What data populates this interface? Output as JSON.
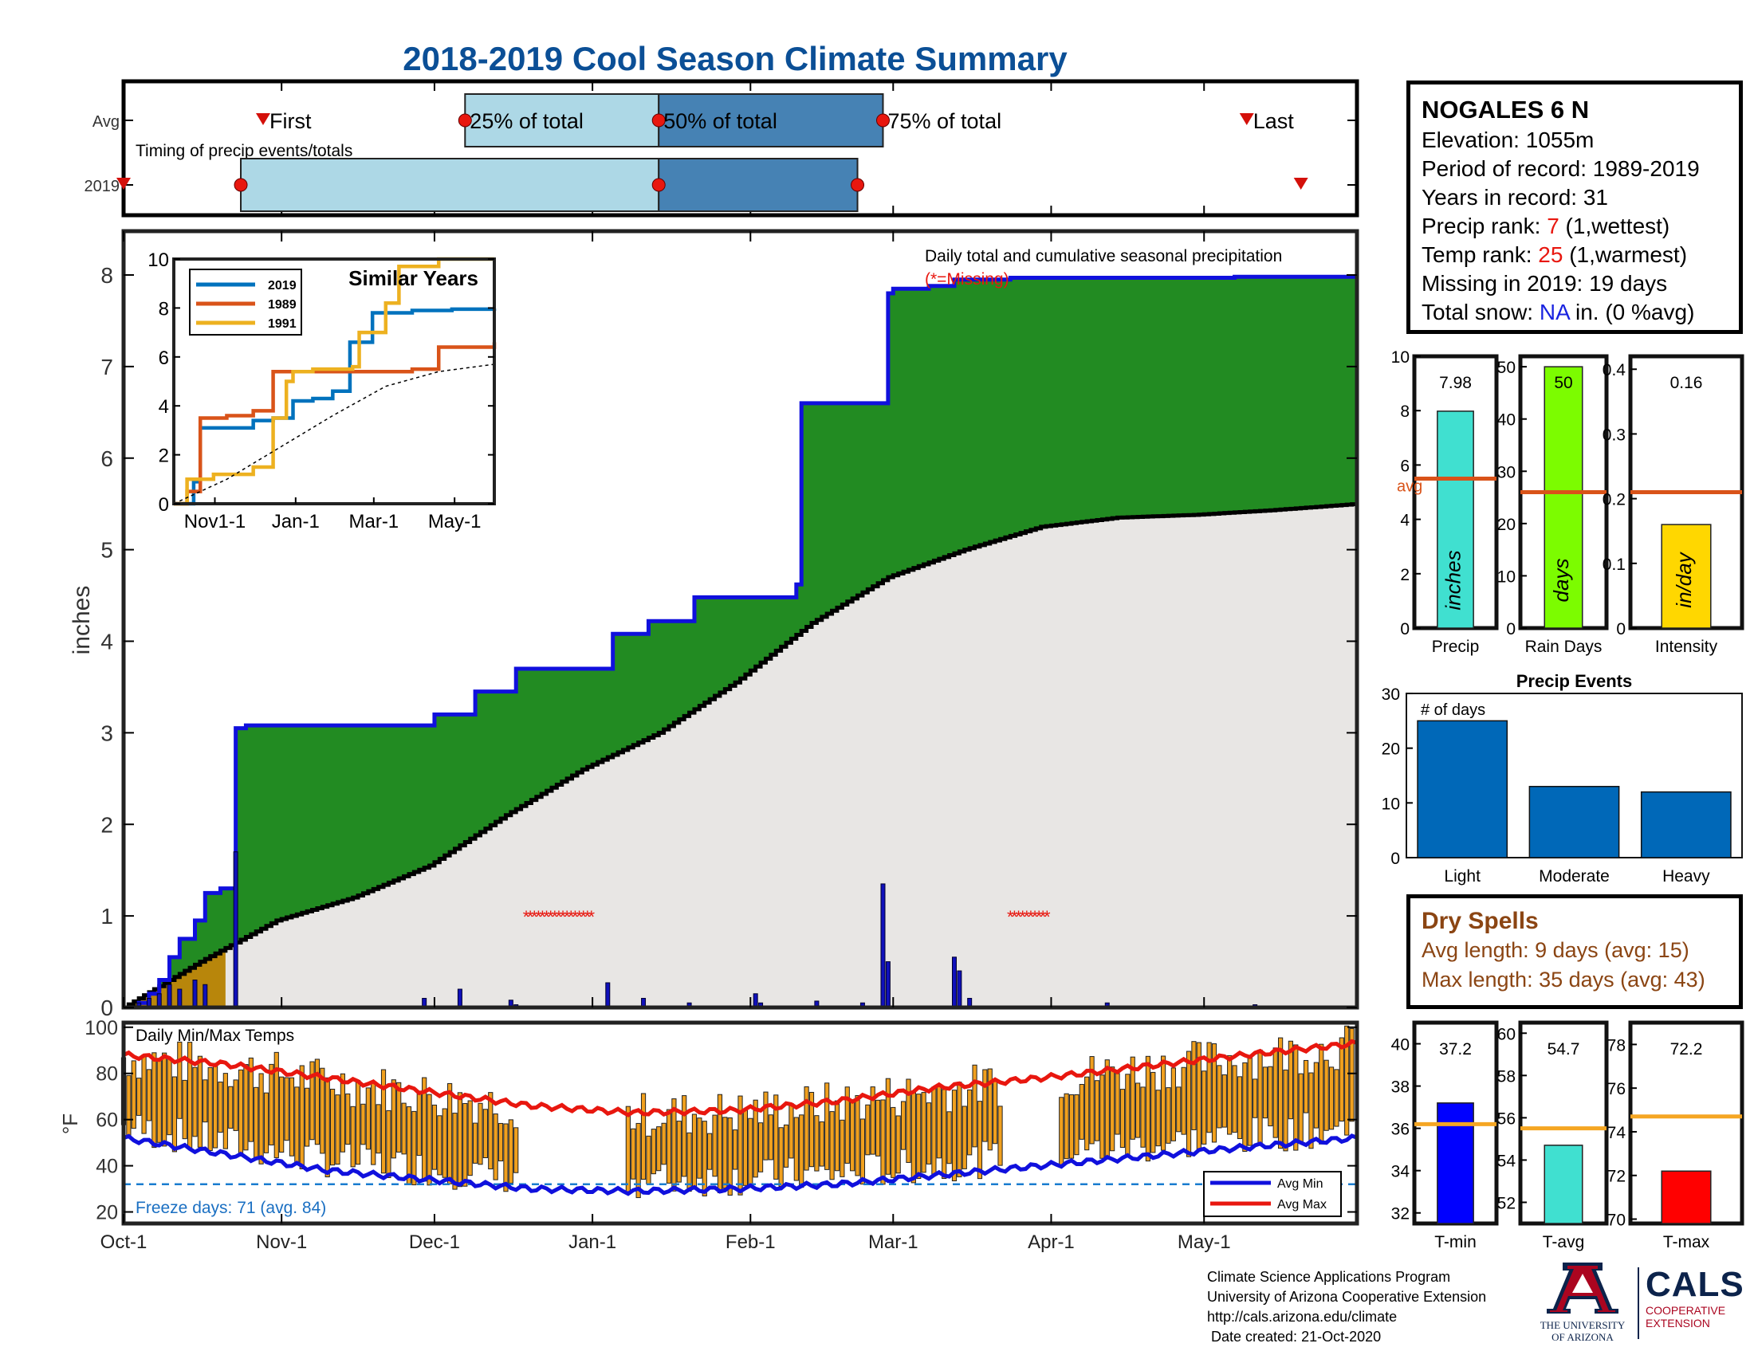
{
  "title": "2018-2019 Cool Season Climate Summary",
  "timing_panel": {
    "row_labels": [
      "Avg",
      "2019"
    ],
    "subtitle": "Timing of precip events/totals",
    "avg_markers": {
      "first": "First",
      "p25": "25% of total",
      "p50": "50% of total",
      "p75": "75% of total",
      "last": "Last"
    },
    "avg_dates": {
      "first": "2018-10-29",
      "p25": "2018-12-07",
      "p50": "2019-01-14",
      "p75": "2019-02-27",
      "last": "2019-05-10"
    },
    "y2019_dates": {
      "first": "2018-10-01",
      "p25": "2018-10-24",
      "p50": "2019-01-14",
      "p75": "2019-02-22",
      "last": "2019-05-20"
    }
  },
  "station": {
    "name": "NOGALES 6 N",
    "elevation_label": "Elevation: 1055m",
    "period_label": "Period of record: 1989-2019",
    "years_label": "Years in record: 31",
    "precip_rank_prefix": "Precip rank:",
    "precip_rank_value": "7",
    "precip_rank_suffix": "(1,wettest)",
    "temp_rank_prefix": "Temp rank:",
    "temp_rank_value": "25",
    "temp_rank_suffix": "(1,warmest)",
    "missing_label": "Missing in 2019: 19 days",
    "snow_prefix": "Total snow:",
    "snow_value": "NA",
    "snow_suffix": "in. (0 %avg)"
  },
  "main_chart": {
    "ylabel": "inches",
    "annotation": "Daily total and cumulative seasonal precipitation",
    "missing_note": "(*=Missing)",
    "x_ticks": [
      "Oct-1",
      "Nov-1",
      "Dec-1",
      "Jan-1",
      "Feb-1",
      "Mar-1",
      "Apr-1",
      "May-1"
    ],
    "y_ticks": [
      "0",
      "1",
      "2",
      "3",
      "4",
      "5",
      "6",
      "7",
      "8"
    ],
    "ylim": [
      0,
      8.1
    ],
    "colors": {
      "cumulative_line": "#1010dd",
      "above_avg_fill": "#228b22",
      "avg_fill": "#e8e6e4",
      "avg_line": "#000000",
      "daily_bars": "#1010bb",
      "below_avg_fill": "#b8860b"
    }
  },
  "chart_data": [
    {
      "type": "area",
      "title": "Daily total and cumulative seasonal precipitation",
      "ylabel": "inches",
      "series": [
        {
          "name": "",
          "x": [
            0,
            3,
            5,
            7,
            9,
            11,
            14,
            16,
            19,
            20,
            22,
            24,
            30,
            60,
            61,
            68,
            69,
            76,
            77,
            95,
            96,
            102,
            103,
            111,
            112,
            132,
            133,
            149,
            150,
            151,
            153,
            157,
            158,
            162,
            163,
            173,
            174,
            217,
            218,
            237,
            238,
            242
          ],
          "y": [
            0,
            0.05,
            0.15,
            0.3,
            0.55,
            0.75,
            0.95,
            1.25,
            1.3,
            1.3,
            3.05,
            3.08,
            3.08,
            3.08,
            3.2,
            3.2,
            3.45,
            3.45,
            3.7,
            3.7,
            4.08,
            4.08,
            4.22,
            4.22,
            4.48,
            4.62,
            6.6,
            6.6,
            7.8,
            7.85,
            7.85,
            7.85,
            7.88,
            7.88,
            7.95,
            7.95,
            7.97,
            7.97,
            7.98,
            7.98,
            7.98,
            7.98
          ]
        },
        {
          "name": "",
          "x": [
            0,
            15,
            30,
            45,
            60,
            75,
            90,
            105,
            120,
            135,
            150,
            165,
            180,
            195,
            210,
            225,
            242
          ],
          "y": [
            0,
            0.5,
            0.95,
            1.2,
            1.55,
            2.1,
            2.6,
            3.0,
            3.55,
            4.2,
            4.7,
            5.0,
            5.25,
            5.35,
            5.38,
            5.43,
            5.5
          ]
        }
      ],
      "daily_bars": {
        "x": [
          3,
          5,
          7,
          9,
          11,
          14,
          16,
          22,
          59,
          66,
          76,
          77,
          95,
          102,
          111,
          124,
          125,
          136,
          145,
          149,
          150,
          163,
          164,
          166,
          193,
          222
        ],
        "y": [
          0.05,
          0.1,
          0.15,
          0.25,
          0.2,
          0.3,
          0.25,
          1.7,
          0.1,
          0.2,
          0.08,
          0.03,
          0.27,
          0.1,
          0.05,
          0.15,
          0.05,
          0.07,
          0.05,
          1.35,
          0.5,
          0.55,
          0.4,
          0.1,
          0.05,
          0.03
        ]
      },
      "missing_periods": [
        [
          79,
          92
        ],
        [
          174,
          182
        ]
      ]
    },
    {
      "type": "line",
      "title": "Similar Years",
      "x_ticks": [
        "Nov1-1",
        "Jan-1",
        "Mar-1",
        "May-1"
      ],
      "y_ticks": [
        "0",
        "2",
        "4",
        "6",
        "8",
        "10"
      ],
      "ylim": [
        0,
        10
      ],
      "series": [
        {
          "name": "2019",
          "color": "#0072bd",
          "x": [
            0,
            15,
            20,
            30,
            60,
            75,
            90,
            105,
            120,
            133,
            150,
            180,
            210,
            242
          ],
          "y": [
            0,
            0.9,
            3.1,
            3.1,
            3.4,
            3.5,
            4.2,
            4.3,
            4.6,
            6.6,
            7.8,
            7.9,
            7.95,
            7.98
          ]
        },
        {
          "name": "1989",
          "color": "#d95319",
          "x": [
            0,
            10,
            20,
            40,
            60,
            75,
            90,
            120,
            180,
            200,
            220,
            242
          ],
          "y": [
            0,
            0.5,
            3.5,
            3.6,
            3.8,
            5.4,
            5.4,
            5.4,
            5.5,
            6.4,
            6.4,
            6.6
          ]
        },
        {
          "name": "1991",
          "color": "#edb120",
          "x": [
            0,
            10,
            30,
            60,
            75,
            85,
            90,
            105,
            135,
            140,
            160,
            170,
            200,
            242
          ],
          "y": [
            0,
            1.0,
            1.2,
            1.5,
            3.5,
            5.0,
            5.4,
            5.5,
            5.6,
            7.0,
            8.2,
            9.7,
            10.0,
            10.0
          ]
        },
        {
          "name": "",
          "color": "#000000",
          "x": [
            0,
            40,
            80,
            120,
            160,
            200,
            242
          ],
          "y": [
            0,
            1.0,
            2.3,
            3.6,
            4.8,
            5.4,
            5.7
          ]
        }
      ]
    },
    {
      "type": "bar",
      "categories": [
        "Precip",
        "Rain Days",
        "Intensity"
      ],
      "values": [
        7.98,
        50,
        0.16
      ],
      "avg_values": [
        5.5,
        26,
        0.21
      ],
      "units": [
        "inches",
        "days",
        "in/day"
      ],
      "ylims": [
        [
          0,
          10
        ],
        [
          0,
          50
        ],
        [
          0,
          0.4
        ]
      ],
      "avg_label": "avg"
    },
    {
      "type": "bar",
      "title": "Precip Events",
      "categories": [
        "Light",
        "Moderate",
        "Heavy"
      ],
      "values": [
        25,
        13,
        12
      ],
      "ylim": [
        0,
        30
      ],
      "annotation": "# of days"
    },
    {
      "type": "bar",
      "categories": [
        "T-min",
        "T-avg",
        "T-max"
      ],
      "values": [
        37.2,
        54.7,
        72.2
      ],
      "avg_values": [
        36.2,
        55.5,
        74.7
      ],
      "ylims": [
        [
          31.5,
          41
        ],
        [
          51,
          60.5
        ],
        [
          69.8,
          79
        ]
      ]
    },
    {
      "type": "line",
      "title": "Daily Min/Max Temps",
      "ylabel": "°F",
      "ylim": [
        15,
        102
      ],
      "series": [
        {
          "name": "Avg Min",
          "color": "#1010dd",
          "x": [
            0,
            20,
            40,
            60,
            80,
            100,
            120,
            140,
            160,
            180,
            200,
            220,
            242
          ],
          "y": [
            52,
            45,
            38,
            34,
            30,
            29,
            30,
            32,
            36,
            40,
            44,
            48,
            52
          ]
        },
        {
          "name": "Avg Max",
          "color": "#e8170f",
          "x": [
            0,
            20,
            40,
            60,
            80,
            100,
            120,
            140,
            160,
            180,
            200,
            220,
            242
          ],
          "y": [
            88,
            84,
            78,
            72,
            66,
            63,
            64,
            68,
            74,
            78,
            83,
            88,
            93
          ]
        }
      ],
      "freeze_line": 32,
      "freeze_text": "Freeze days: 71 (avg. 84)",
      "bars_color": "#f0a01e"
    }
  ],
  "footer": {
    "line1": "Climate Science Applications Program",
    "line2": "University of Arizona Cooperative Extension",
    "line3": "http://cals.arizona.edu/climate",
    "line4": " Date created: 21-Oct-2020"
  },
  "dry_spells": {
    "title": "Dry Spells",
    "avg_length": "Avg length: 9 days (avg: 15)",
    "max_length": "Max length: 35 days (avg: 43)"
  },
  "logos": {
    "ua_text1": "THE UNIVERSITY",
    "ua_text2": "OF ARIZONA",
    "cals": "CALS",
    "cals_sub1": "COOPERATIVE",
    "cals_sub2": "EXTENSION"
  }
}
